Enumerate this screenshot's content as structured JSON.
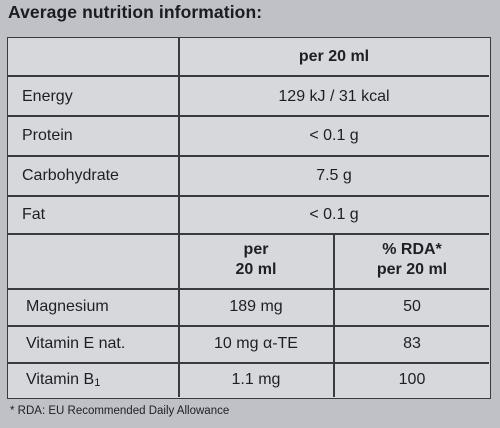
{
  "title": "Average nutrition information:",
  "top_table": {
    "header": "per 20 ml",
    "rows": [
      {
        "label": "Energy",
        "value": "129 kJ / 31 kcal"
      },
      {
        "label": "Protein",
        "value": "< 0.1 g"
      },
      {
        "label": "Carbohydrate",
        "value": "7.5 g"
      },
      {
        "label": "Fat",
        "value": "< 0.1 g"
      }
    ]
  },
  "bottom_table": {
    "col1_header_line1": "per",
    "col1_header_line2": "20 ml",
    "col2_header_line1": "% RDA*",
    "col2_header_line2": "per 20 ml",
    "rows": [
      {
        "label": "Magnesium",
        "amount": "189 mg",
        "rda": "50"
      },
      {
        "label": "Vitamin E nat.",
        "amount": "10 mg α-TE",
        "rda": "83"
      },
      {
        "label_main": "Vitamin B",
        "label_sub": "1",
        "amount": "1.1 mg",
        "rda": "100"
      }
    ]
  },
  "footnote": "* RDA: EU Recommended Daily Allowance"
}
